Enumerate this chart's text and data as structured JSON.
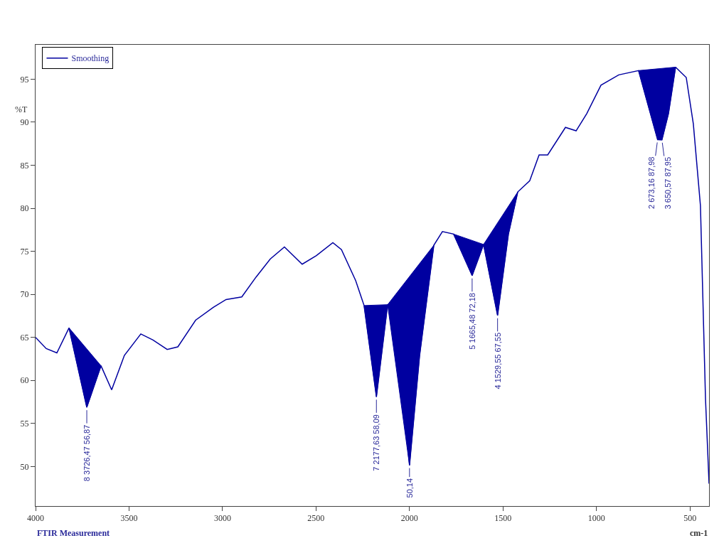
{
  "chart_data": {
    "type": "line",
    "xlabel": "cm-1",
    "ylabel": "%T",
    "legend": "top left",
    "marker": "none",
    "line_style": "solid",
    "xlim": [
      4000,
      398
    ],
    "ylim": [
      45.4,
      99
    ],
    "xticks": [
      4000,
      3500,
      3000,
      2500,
      2000,
      1500,
      1000,
      500
    ],
    "yticks": [
      50,
      55,
      60,
      65,
      70,
      75,
      80,
      85,
      90,
      95
    ],
    "series": [
      {
        "name": "Smoothing",
        "color": "#0000a0",
        "x": [
          4000,
          3943,
          3886,
          3821,
          3726,
          3650,
          3593,
          3525,
          3437,
          3372,
          3296,
          3239,
          3144,
          3049,
          2981,
          2897,
          2821,
          2745,
          2669,
          2574,
          2498,
          2410,
          2364,
          2288,
          2243,
          2177,
          2117,
          2087,
          2000,
          1946,
          1870,
          1824,
          1764,
          1665,
          1604,
          1529,
          1471,
          1421,
          1357,
          1307,
          1261,
          1166,
          1109,
          1052,
          976,
          881,
          775,
          673,
          650,
          615,
          577,
          520,
          482,
          444,
          417,
          398
        ],
        "values": [
          65.0,
          63.7,
          63.2,
          66.1,
          56.87,
          61.7,
          58.9,
          62.9,
          65.4,
          64.7,
          63.6,
          63.9,
          67.0,
          68.5,
          69.4,
          69.7,
          72.0,
          74.1,
          75.5,
          73.5,
          74.5,
          76.0,
          75.2,
          71.6,
          68.7,
          58.09,
          68.8,
          68.9,
          50.14,
          62.9,
          75.7,
          77.3,
          77.0,
          72.18,
          75.8,
          67.55,
          77.0,
          81.9,
          83.2,
          86.2,
          86.2,
          89.4,
          89.0,
          91.0,
          94.3,
          95.5,
          96.0,
          87.98,
          87.95,
          91.0,
          96.4,
          95.2,
          89.8,
          80.3,
          57.9,
          48.0
        ]
      },
      {
        "type": "area",
        "color": "#0000a0",
        "x": [
          3821,
          3726,
          3650
        ],
        "values": [
          66.1,
          56.87,
          61.7
        ]
      },
      {
        "type": "area",
        "color": "#0000a0",
        "x": [
          2243,
          2177,
          2117
        ],
        "values": [
          68.7,
          58.09,
          68.8
        ]
      },
      {
        "type": "area",
        "color": "#0000a0",
        "x": [
          2117,
          2000,
          1946,
          1870
        ],
        "values": [
          68.8,
          50.14,
          62.9,
          75.7
        ]
      },
      {
        "type": "area",
        "color": "#0000a0",
        "x": [
          1764,
          1665,
          1604
        ],
        "values": [
          77.0,
          72.18,
          75.8
        ]
      },
      {
        "type": "area",
        "color": "#0000a0",
        "x": [
          1604,
          1529,
          1471,
          1421
        ],
        "values": [
          75.8,
          67.55,
          77.0,
          81.9
        ]
      },
      {
        "type": "area",
        "color": "#0000a0",
        "x": [
          775,
          673,
          650,
          615,
          577
        ],
        "values": [
          96.0,
          87.98,
          87.95,
          91.0,
          96.4
        ]
      }
    ],
    "annotations": [
      {
        "text": "8 3726,47 56,87",
        "x": 3726,
        "y": 56.87
      },
      {
        "text": "7 2177,63 58,09",
        "x": 2177,
        "y": 58.09
      },
      {
        "text": "50,14",
        "x": 2000,
        "y": 50.14
      },
      {
        "text": "5 1665,48 72,18",
        "x": 1665,
        "y": 72.18
      },
      {
        "text": "4 1529,55 67,55",
        "x": 1529,
        "y": 67.55
      },
      {
        "text": "3 650,57 87,95",
        "x": 650,
        "y": 87.95
      },
      {
        "text": "2 673,16 87,98",
        "x": 673,
        "y": 87.98
      },
      "FTIR Measurement"
    ]
  }
}
